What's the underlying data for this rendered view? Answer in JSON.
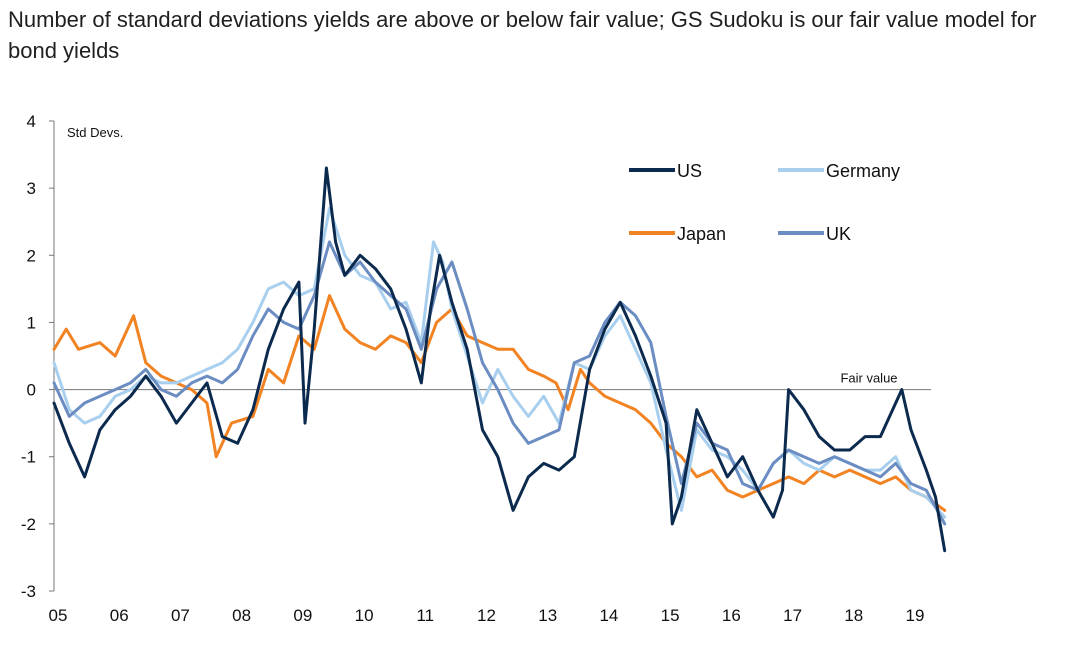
{
  "title": "Number of standard deviations yields are above or below fair value; GS Sudoku is our fair value model for bond yields",
  "chart_data": {
    "type": "line",
    "ylabel": "Std Devs.",
    "xlabel": "",
    "ylim": [
      -3,
      4
    ],
    "xlim": [
      2005,
      2019.55
    ],
    "yticks": [
      4,
      3,
      2,
      1,
      0,
      -1,
      -2,
      -3
    ],
    "ytick_labels": [
      "4",
      "3",
      "2",
      "1",
      "0",
      "-1",
      "-2",
      "-3"
    ],
    "xticks": [
      2005,
      2006,
      2007,
      2008,
      2009,
      2010,
      2011,
      2012,
      2013,
      2014,
      2015,
      2016,
      2017,
      2018,
      2019
    ],
    "xtick_labels": [
      "05",
      "06",
      "07",
      "08",
      "09",
      "10",
      "11",
      "12",
      "13",
      "14",
      "15",
      "16",
      "17",
      "18",
      "19"
    ],
    "annotation": "Fair value",
    "series": [
      {
        "name": "US",
        "color": "#0b2a4e",
        "x": [
          2005.0,
          2005.25,
          2005.5,
          2005.75,
          2006.0,
          2006.25,
          2006.5,
          2006.75,
          2007.0,
          2007.25,
          2007.5,
          2007.75,
          2008.0,
          2008.25,
          2008.5,
          2008.75,
          2009.0,
          2009.1,
          2009.25,
          2009.45,
          2009.6,
          2009.75,
          2010.0,
          2010.25,
          2010.5,
          2010.75,
          2011.0,
          2011.15,
          2011.3,
          2011.5,
          2011.75,
          2012.0,
          2012.25,
          2012.5,
          2012.75,
          2013.0,
          2013.25,
          2013.5,
          2013.75,
          2014.0,
          2014.25,
          2014.5,
          2014.75,
          2015.0,
          2015.1,
          2015.25,
          2015.5,
          2015.75,
          2016.0,
          2016.25,
          2016.5,
          2016.75,
          2016.9,
          2017.0,
          2017.25,
          2017.5,
          2017.75,
          2018.0,
          2018.25,
          2018.5,
          2018.75,
          2018.85,
          2019.0,
          2019.25,
          2019.4,
          2019.55
        ],
        "values": [
          -0.2,
          -0.8,
          -1.3,
          -0.6,
          -0.3,
          -0.1,
          0.2,
          -0.1,
          -0.5,
          -0.2,
          0.1,
          -0.7,
          -0.8,
          -0.3,
          0.6,
          1.2,
          1.6,
          -0.5,
          0.9,
          3.3,
          2.2,
          1.7,
          2.0,
          1.8,
          1.5,
          0.9,
          0.1,
          1.2,
          2.0,
          1.3,
          0.6,
          -0.6,
          -1.0,
          -1.8,
          -1.3,
          -1.1,
          -1.2,
          -1.0,
          0.3,
          0.9,
          1.3,
          0.8,
          0.2,
          -0.5,
          -2.0,
          -1.6,
          -0.3,
          -0.8,
          -1.3,
          -1.0,
          -1.5,
          -1.9,
          -1.5,
          0.0,
          -0.3,
          -0.7,
          -0.9,
          -0.9,
          -0.7,
          -0.7,
          -0.2,
          0.0,
          -0.6,
          -1.2,
          -1.6,
          -2.4
        ]
      },
      {
        "name": "Germany",
        "color": "#a9cfee",
        "x": [
          2005.0,
          2005.25,
          2005.5,
          2005.75,
          2006.0,
          2006.25,
          2006.5,
          2006.75,
          2007.0,
          2007.25,
          2007.5,
          2007.75,
          2008.0,
          2008.25,
          2008.5,
          2008.75,
          2009.0,
          2009.25,
          2009.5,
          2009.75,
          2010.0,
          2010.25,
          2010.5,
          2010.75,
          2011.0,
          2011.2,
          2011.35,
          2011.5,
          2011.75,
          2012.0,
          2012.25,
          2012.5,
          2012.75,
          2013.0,
          2013.25,
          2013.5,
          2013.75,
          2014.0,
          2014.25,
          2014.5,
          2014.75,
          2015.0,
          2015.25,
          2015.5,
          2015.75,
          2016.0,
          2016.25,
          2016.5,
          2016.75,
          2017.0,
          2017.25,
          2017.5,
          2017.75,
          2018.0,
          2018.25,
          2018.5,
          2018.75,
          2019.0,
          2019.25,
          2019.55
        ],
        "values": [
          0.4,
          -0.3,
          -0.5,
          -0.4,
          -0.1,
          0.0,
          0.2,
          0.1,
          0.1,
          0.2,
          0.3,
          0.4,
          0.6,
          1.0,
          1.5,
          1.6,
          1.4,
          1.5,
          2.7,
          2.0,
          1.7,
          1.6,
          1.2,
          1.3,
          0.7,
          2.2,
          1.9,
          1.2,
          0.5,
          -0.2,
          0.3,
          -0.1,
          -0.4,
          -0.1,
          -0.5,
          0.4,
          0.3,
          0.8,
          1.1,
          0.6,
          0.1,
          -0.9,
          -1.8,
          -0.6,
          -0.9,
          -1.0,
          -1.2,
          -1.5,
          -1.1,
          -0.9,
          -1.1,
          -1.2,
          -1.0,
          -1.1,
          -1.2,
          -1.2,
          -1.0,
          -1.5,
          -1.6,
          -1.9
        ]
      },
      {
        "name": "Japan",
        "color": "#f28322",
        "x": [
          2005.0,
          2005.2,
          2005.4,
          2005.75,
          2006.0,
          2006.3,
          2006.5,
          2006.75,
          2007.0,
          2007.25,
          2007.5,
          2007.65,
          2007.9,
          2008.25,
          2008.5,
          2008.75,
          2009.0,
          2009.25,
          2009.5,
          2009.75,
          2010.0,
          2010.25,
          2010.5,
          2010.75,
          2011.0,
          2011.25,
          2011.5,
          2011.75,
          2012.0,
          2012.25,
          2012.5,
          2012.75,
          2013.0,
          2013.2,
          2013.4,
          2013.6,
          2013.75,
          2014.0,
          2014.25,
          2014.5,
          2014.75,
          2015.0,
          2015.25,
          2015.5,
          2015.75,
          2016.0,
          2016.25,
          2016.5,
          2016.75,
          2017.0,
          2017.25,
          2017.5,
          2017.75,
          2018.0,
          2018.25,
          2018.5,
          2018.75,
          2019.0,
          2019.25,
          2019.55
        ],
        "values": [
          0.6,
          0.9,
          0.6,
          0.7,
          0.5,
          1.1,
          0.4,
          0.2,
          0.1,
          0.0,
          -0.2,
          -1.0,
          -0.5,
          -0.4,
          0.3,
          0.1,
          0.8,
          0.6,
          1.4,
          0.9,
          0.7,
          0.6,
          0.8,
          0.7,
          0.4,
          1.0,
          1.2,
          0.8,
          0.7,
          0.6,
          0.6,
          0.3,
          0.2,
          0.1,
          -0.3,
          0.3,
          0.1,
          -0.1,
          -0.2,
          -0.3,
          -0.5,
          -0.8,
          -1.0,
          -1.3,
          -1.2,
          -1.5,
          -1.6,
          -1.5,
          -1.4,
          -1.3,
          -1.4,
          -1.2,
          -1.3,
          -1.2,
          -1.3,
          -1.4,
          -1.3,
          -1.5,
          -1.6,
          -1.8
        ]
      },
      {
        "name": "UK",
        "color": "#6b8dc2",
        "x": [
          2005.0,
          2005.25,
          2005.5,
          2005.75,
          2006.0,
          2006.25,
          2006.5,
          2006.75,
          2007.0,
          2007.25,
          2007.5,
          2007.75,
          2008.0,
          2008.25,
          2008.5,
          2008.75,
          2009.0,
          2009.25,
          2009.5,
          2009.75,
          2010.0,
          2010.25,
          2010.5,
          2010.75,
          2011.0,
          2011.25,
          2011.5,
          2011.75,
          2012.0,
          2012.25,
          2012.5,
          2012.75,
          2013.0,
          2013.25,
          2013.5,
          2013.75,
          2014.0,
          2014.25,
          2014.5,
          2014.75,
          2015.0,
          2015.25,
          2015.5,
          2015.75,
          2016.0,
          2016.25,
          2016.5,
          2016.75,
          2017.0,
          2017.25,
          2017.5,
          2017.75,
          2018.0,
          2018.25,
          2018.5,
          2018.75,
          2019.0,
          2019.25,
          2019.55
        ],
        "values": [
          0.1,
          -0.4,
          -0.2,
          -0.1,
          0.0,
          0.1,
          0.3,
          0.0,
          -0.1,
          0.1,
          0.2,
          0.1,
          0.3,
          0.8,
          1.2,
          1.0,
          0.9,
          1.4,
          2.2,
          1.7,
          1.9,
          1.6,
          1.4,
          1.2,
          0.6,
          1.5,
          1.9,
          1.2,
          0.4,
          0.0,
          -0.5,
          -0.8,
          -0.7,
          -0.6,
          0.4,
          0.5,
          1.0,
          1.3,
          1.1,
          0.7,
          -0.4,
          -1.4,
          -0.5,
          -0.8,
          -0.9,
          -1.4,
          -1.5,
          -1.1,
          -0.9,
          -1.0,
          -1.1,
          -1.0,
          -1.1,
          -1.2,
          -1.3,
          -1.1,
          -1.4,
          -1.5,
          -2.0
        ]
      }
    ]
  }
}
